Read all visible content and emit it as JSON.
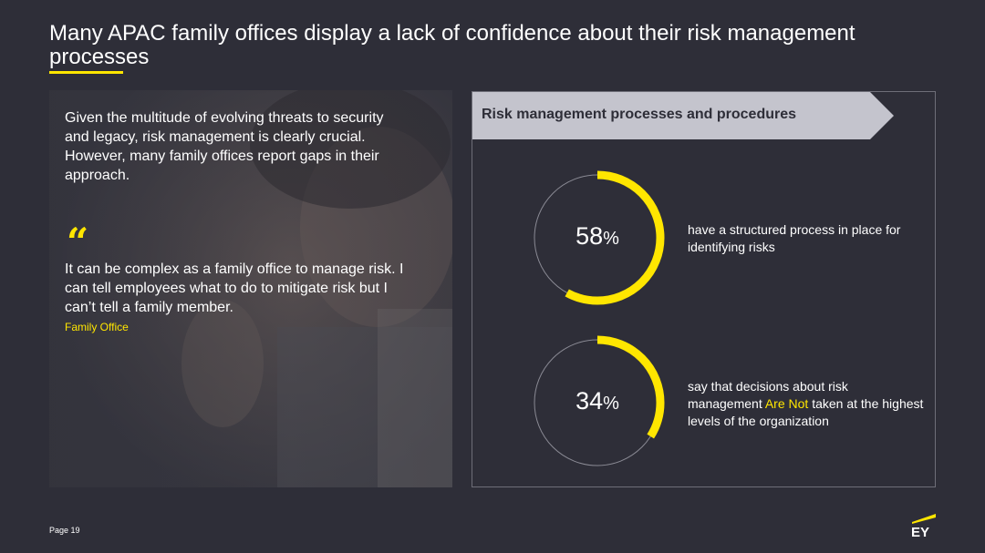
{
  "title": "Many APAC family offices display a lack of confidence about their risk management processes",
  "left": {
    "intro": "Given the multitude of evolving threats to security and legacy, risk management is clearly crucial. However, many family offices report gaps in their approach.",
    "quote_mark": "“",
    "quote": "It can be complex as a family office to manage risk. I can tell employees what to do to mitigate risk but I can’t tell a family member.",
    "attribution": "Family Office"
  },
  "right": {
    "header": "Risk management processes and procedures",
    "stats": [
      {
        "value": 58,
        "value_label": "58",
        "unit": "%",
        "text": "have a structured process in place for identifying risks"
      },
      {
        "value": 34,
        "value_label": "34",
        "unit": "%",
        "text_before": "say that decisions about risk management ",
        "text_highlight": "Are Not",
        "text_after": " taken at the highest levels of the organization"
      }
    ]
  },
  "footer": {
    "page": "Page 19",
    "logo_text": "EY"
  },
  "colors": {
    "background": "#2e2e38",
    "accent": "#ffe600",
    "header_bar": "#c4c4cd",
    "ring_track": "#8a8a94"
  }
}
